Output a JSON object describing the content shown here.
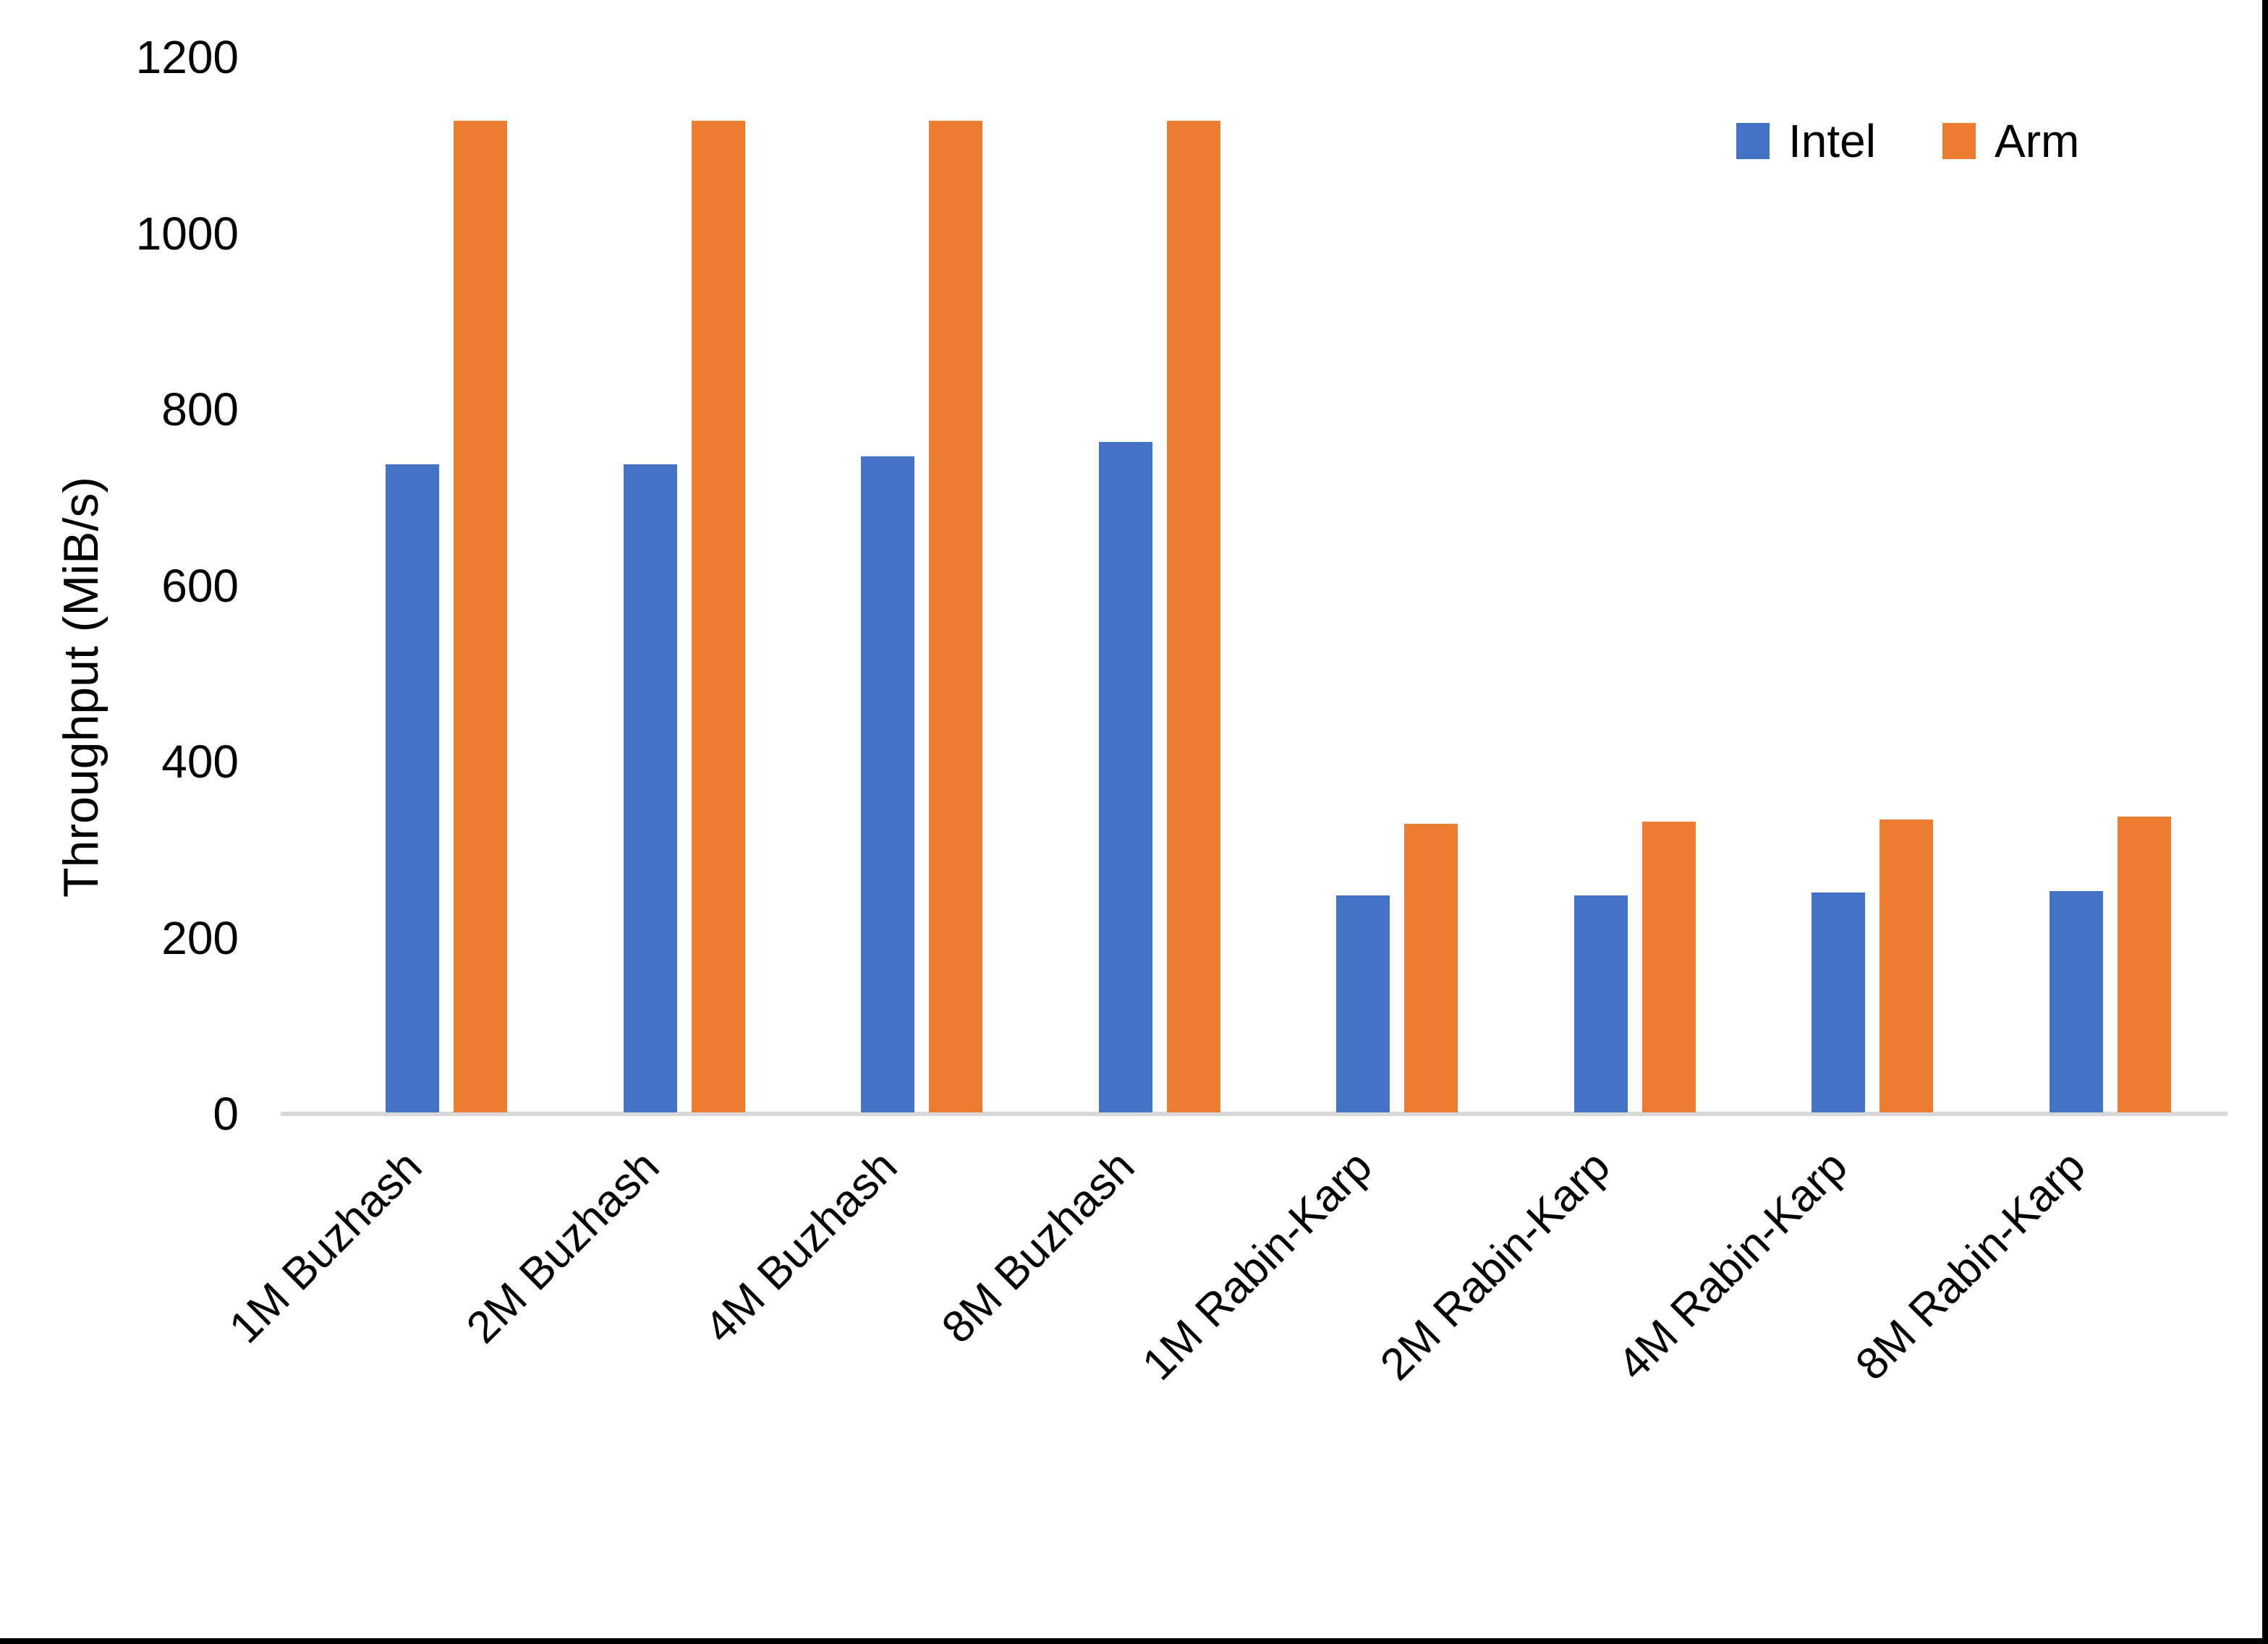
{
  "chart_data": {
    "type": "bar",
    "title": "",
    "xlabel": "",
    "ylabel": "Throughput (MiB/s)",
    "categories": [
      "1M Buzhash",
      "2M Buzhash",
      "4M Buzhash",
      "8M Buzhash",
      "1M Rabin-Karp",
      "2M Rabin-Karp",
      "4M Rabin-Karp",
      "8M Rabin-Karp"
    ],
    "series": [
      {
        "name": "Intel",
        "color": "#4472C4",
        "values": [
          736,
          736,
          745,
          761,
          246,
          246,
          250,
          251
        ]
      },
      {
        "name": "Arm",
        "color": "#ED7D31",
        "values": [
          1126,
          1126,
          1126,
          1126,
          328,
          330,
          333,
          336
        ]
      }
    ],
    "ylim": [
      0,
      1200
    ],
    "yticks": [
      0,
      200,
      400,
      600,
      800,
      1000,
      1200
    ],
    "grid": false,
    "legend_position": "top-right",
    "axis_line_color": "#D9D9D9",
    "text_color": "#000000",
    "background": "#FFFFFF",
    "frame_border_color": "#000000"
  }
}
